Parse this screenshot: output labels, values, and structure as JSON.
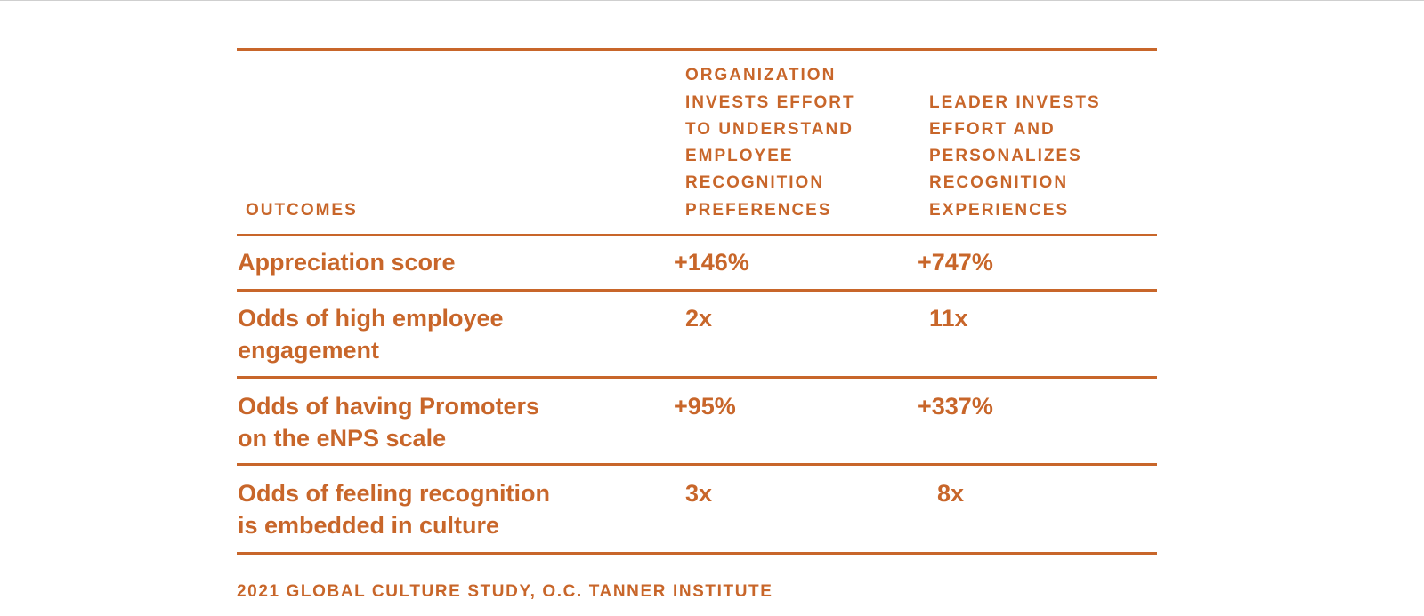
{
  "table": {
    "header": [
      [
        "OUTCOMES"
      ],
      [
        "ORGANIZATION",
        "INVESTS EFFORT",
        "TO UNDERSTAND",
        "EMPLOYEE",
        "RECOGNITION",
        "PREFERENCES"
      ],
      [
        "LEADER INVESTS",
        "EFFORT AND",
        "PERSONALIZES",
        "RECOGNITION",
        "EXPERIENCES"
      ]
    ],
    "rows": [
      [
        [
          "Appreciation score"
        ],
        "+146%",
        "+747%"
      ],
      [
        [
          "Odds of high employee",
          "engagement"
        ],
        "2x",
        "11x"
      ],
      [
        [
          "Odds of having Promoters",
          "on the eNPS scale"
        ],
        "+95%",
        "+337%"
      ],
      [
        [
          "Odds of feeling recognition",
          "is embedded in culture"
        ],
        "3x",
        "8x"
      ]
    ]
  },
  "source": "2021 GLOBAL CULTURE STUDY, O.C. TANNER INSTITUTE"
}
